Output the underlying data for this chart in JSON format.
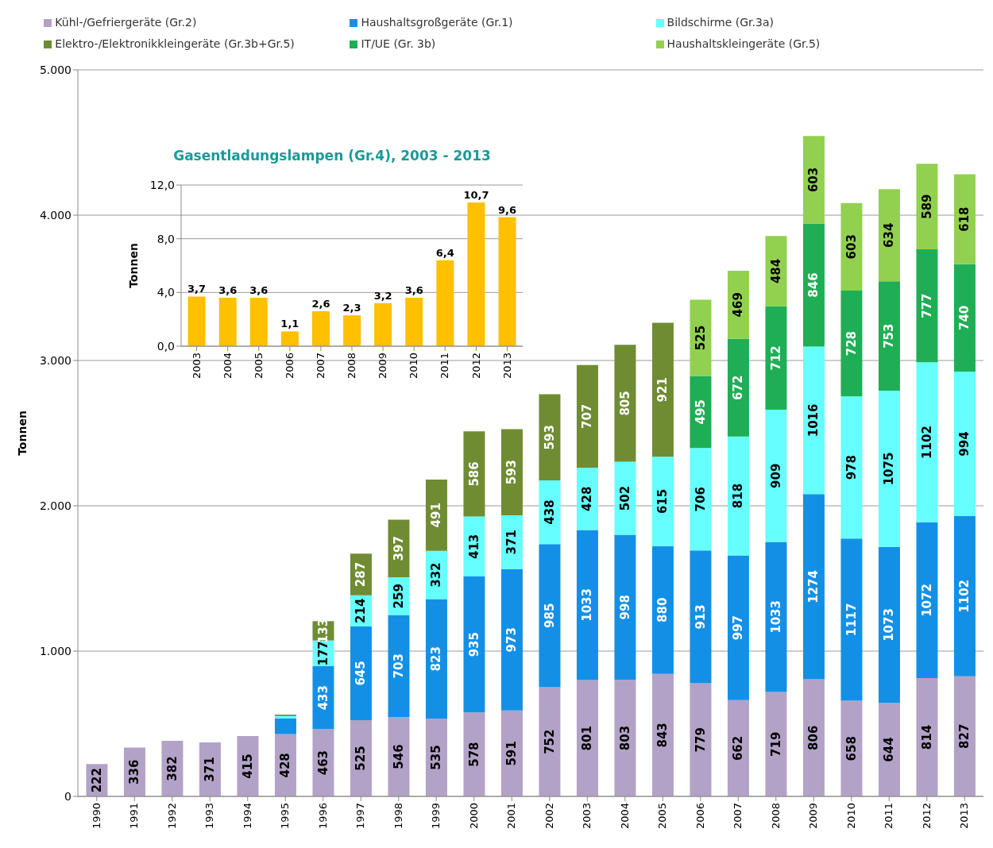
{
  "chart_data": [
    {
      "type": "bar",
      "stacked": true,
      "ylabel": "Tonnen",
      "categories": [
        "1990",
        "1991",
        "1992",
        "1993",
        "1994",
        "1995",
        "1996",
        "1997",
        "1998",
        "1999",
        "2000",
        "2001",
        "2002",
        "2003",
        "2004",
        "2005",
        "2006",
        "2007",
        "2008",
        "2009",
        "2010",
        "2011",
        "2012",
        "2013"
      ],
      "series": [
        {
          "name": "Kühl-/Gefriergeräte (Gr.2)",
          "color": "#b3a2c7",
          "values": [
            222,
            336,
            382,
            371,
            415,
            428,
            463,
            525,
            546,
            535,
            578,
            591,
            752,
            801,
            803,
            843,
            779,
            662,
            719,
            806,
            658,
            644,
            814,
            827
          ],
          "value_labels": [
            "222",
            "336",
            "382",
            "371",
            "415",
            "428",
            "463",
            "525",
            "546",
            "535",
            "578",
            "591",
            "752",
            "801",
            "803",
            "843",
            "779",
            "662",
            "719",
            "806",
            "658",
            "644",
            "814",
            "827"
          ]
        },
        {
          "name": "Haushaltsgroßgeräte (Gr.1)",
          "color": "#1390e6",
          "values": [
            null,
            null,
            null,
            null,
            null,
            110,
            433,
            645,
            703,
            823,
            935,
            973,
            985,
            1033,
            998,
            880,
            913,
            997,
            1033,
            1274,
            1117,
            1073,
            1072,
            1102
          ],
          "value_labels": [
            null,
            null,
            null,
            null,
            null,
            null,
            "433",
            "645",
            "703",
            "823",
            "935",
            "973",
            "985",
            "1033",
            "998",
            "880",
            "913",
            "997",
            "1033",
            "1274",
            "1117",
            "1073",
            "1072",
            "1102"
          ]
        },
        {
          "name": "Bildschirme (Gr.3a)",
          "color": "#66ffff",
          "values": [
            null,
            null,
            null,
            null,
            null,
            15,
            177,
            214,
            259,
            332,
            413,
            371,
            438,
            428,
            502,
            615,
            706,
            818,
            909,
            1016,
            978,
            1075,
            1102,
            994
          ],
          "value_labels": [
            null,
            null,
            null,
            null,
            null,
            null,
            "177",
            "214",
            "259",
            "332",
            "413",
            "371",
            "438",
            "428",
            "502",
            "615",
            "706",
            "818",
            "909",
            "1016",
            "978",
            "1075",
            "1102",
            "994"
          ]
        },
        {
          "name": "Elektro-/Elektronikkleingeräte (Gr.3b+Gr.5)",
          "color": "#6f8c33",
          "values": [
            null,
            null,
            null,
            null,
            null,
            10,
            133,
            287,
            397,
            491,
            586,
            593,
            593,
            707,
            805,
            921,
            null,
            null,
            null,
            null,
            null,
            null,
            null,
            null
          ],
          "value_labels": [
            null,
            null,
            null,
            null,
            null,
            null,
            "133",
            "287",
            "397",
            "491",
            "586",
            "593",
            "593",
            "707",
            "805",
            "921",
            null,
            null,
            null,
            null,
            null,
            null,
            null,
            null
          ]
        },
        {
          "name": "IT/UE (Gr. 3b)",
          "color": "#1fae55",
          "values": [
            null,
            null,
            null,
            null,
            null,
            null,
            null,
            null,
            null,
            null,
            null,
            null,
            null,
            null,
            null,
            null,
            495,
            672,
            712,
            846,
            728,
            753,
            777,
            740
          ],
          "value_labels": [
            null,
            null,
            null,
            null,
            null,
            null,
            null,
            null,
            null,
            null,
            null,
            null,
            null,
            null,
            null,
            null,
            "495",
            "672",
            "712",
            "846",
            "728",
            "753",
            "777",
            "740"
          ]
        },
        {
          "name": "Haushaltskleingeräte (Gr.5)",
          "color": "#92d050",
          "values": [
            null,
            null,
            null,
            null,
            null,
            null,
            null,
            null,
            null,
            null,
            null,
            null,
            null,
            null,
            null,
            null,
            525,
            469,
            484,
            603,
            603,
            634,
            589,
            618
          ],
          "value_labels": [
            null,
            null,
            null,
            null,
            null,
            null,
            null,
            null,
            null,
            null,
            null,
            null,
            null,
            null,
            null,
            null,
            "525",
            "469",
            "484",
            "603",
            "603",
            "634",
            "589",
            "618"
          ]
        }
      ],
      "ylim": [
        0,
        5000
      ],
      "yticks": [
        0,
        {
          "value": 1000,
          "label": "1.000"
        },
        {
          "value": 2000,
          "label": "2.000"
        },
        {
          "value": 3000,
          "label": "3.000"
        },
        {
          "value": 4000,
          "label": "4.000"
        },
        {
          "value": 5000,
          "label": "5.000"
        }
      ],
      "grid": "y",
      "legend": "top"
    },
    {
      "type": "bar",
      "title": "Gasentladungslampen (Gr.4), 2003 - 2013",
      "ylabel": "Tonnen",
      "categories": [
        "2003",
        "2004",
        "2005",
        "2006",
        "2007",
        "2008",
        "2009",
        "2010",
        "2011",
        "2012",
        "2013"
      ],
      "values": [
        3.7,
        3.6,
        3.6,
        1.1,
        2.6,
        2.3,
        3.2,
        3.6,
        6.4,
        10.7,
        9.6
      ],
      "color": "#ffc000",
      "value_labels": [
        "3,7",
        "3,6",
        "3,6",
        "1,1",
        "2,6",
        "2,3",
        "3,2",
        "3,6",
        "6,4",
        "10,7",
        "9,6"
      ],
      "ylim": [
        0,
        12
      ],
      "yticks": [
        {
          "value": 0,
          "label": "0,0"
        },
        {
          "value": 4,
          "label": "4,0"
        },
        {
          "value": 8,
          "label": "8,0"
        },
        {
          "value": 12,
          "label": "12,0"
        }
      ],
      "grid": "y"
    }
  ]
}
